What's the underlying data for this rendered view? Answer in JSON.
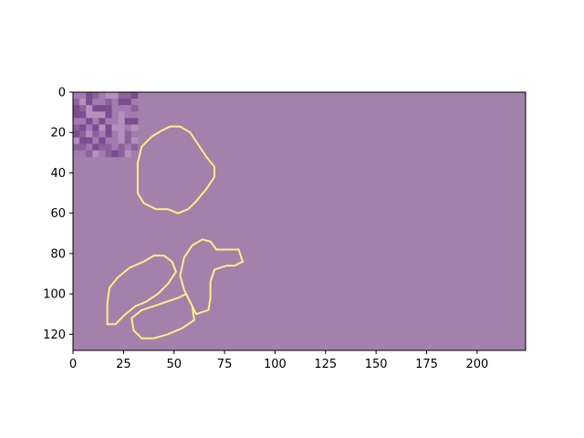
{
  "chart_data": {
    "type": "heatmap",
    "title": "",
    "xlabel": "",
    "ylabel": "",
    "xlim": [
      0,
      224
    ],
    "ylim": [
      128,
      0
    ],
    "x_ticks": [
      0,
      25,
      50,
      75,
      100,
      125,
      150,
      175,
      200
    ],
    "y_ticks": [
      0,
      20,
      40,
      60,
      80,
      100,
      120
    ],
    "grid": false,
    "background_color": "#a281ab",
    "contour_color": "#ffee88",
    "image_patch": {
      "description": "textured histology image tile",
      "x_range": [
        0,
        32
      ],
      "y_range": [
        0,
        32
      ],
      "colors": [
        "#7b4c8f",
        "#a07cb0",
        "#8d6199",
        "#b291bf"
      ]
    },
    "contours": [
      {
        "name": "outline-1",
        "points": [
          [
            32,
            35
          ],
          [
            34,
            27
          ],
          [
            39,
            22
          ],
          [
            44,
            19
          ],
          [
            48,
            17
          ],
          [
            53,
            17
          ],
          [
            58,
            20
          ],
          [
            62,
            26
          ],
          [
            66,
            32
          ],
          [
            70,
            37
          ],
          [
            70,
            42
          ],
          [
            66,
            48
          ],
          [
            61,
            54
          ],
          [
            57,
            58
          ],
          [
            52,
            60
          ],
          [
            47,
            58
          ],
          [
            41,
            58
          ],
          [
            35,
            55
          ],
          [
            32,
            50
          ],
          [
            32,
            42
          ]
        ]
      },
      {
        "name": "outline-2",
        "points": [
          [
            18,
            97
          ],
          [
            22,
            92
          ],
          [
            28,
            87
          ],
          [
            35,
            84
          ],
          [
            40,
            81
          ],
          [
            45,
            81
          ],
          [
            49,
            84
          ],
          [
            51,
            89
          ],
          [
            47,
            95
          ],
          [
            42,
            100
          ],
          [
            36,
            104
          ],
          [
            31,
            106
          ],
          [
            26,
            110
          ],
          [
            21,
            115
          ],
          [
            17,
            115
          ],
          [
            17,
            105
          ]
        ]
      },
      {
        "name": "outline-3",
        "points": [
          [
            29,
            112
          ],
          [
            34,
            108
          ],
          [
            40,
            106
          ],
          [
            46,
            104
          ],
          [
            52,
            102
          ],
          [
            56,
            100
          ],
          [
            59,
            106
          ],
          [
            60,
            113
          ],
          [
            54,
            117
          ],
          [
            47,
            120
          ],
          [
            40,
            122
          ],
          [
            34,
            122
          ],
          [
            30,
            118
          ]
        ]
      },
      {
        "name": "outline-4",
        "points": [
          [
            53,
            91
          ],
          [
            55,
            82
          ],
          [
            59,
            76
          ],
          [
            64,
            73
          ],
          [
            68,
            74
          ],
          [
            71,
            78
          ],
          [
            82,
            78
          ],
          [
            84,
            84
          ],
          [
            80,
            86
          ],
          [
            76,
            86
          ],
          [
            70,
            88
          ],
          [
            68,
            94
          ],
          [
            68,
            102
          ],
          [
            67,
            108
          ],
          [
            61,
            110
          ],
          [
            58,
            104
          ],
          [
            55,
            98
          ]
        ]
      }
    ]
  }
}
